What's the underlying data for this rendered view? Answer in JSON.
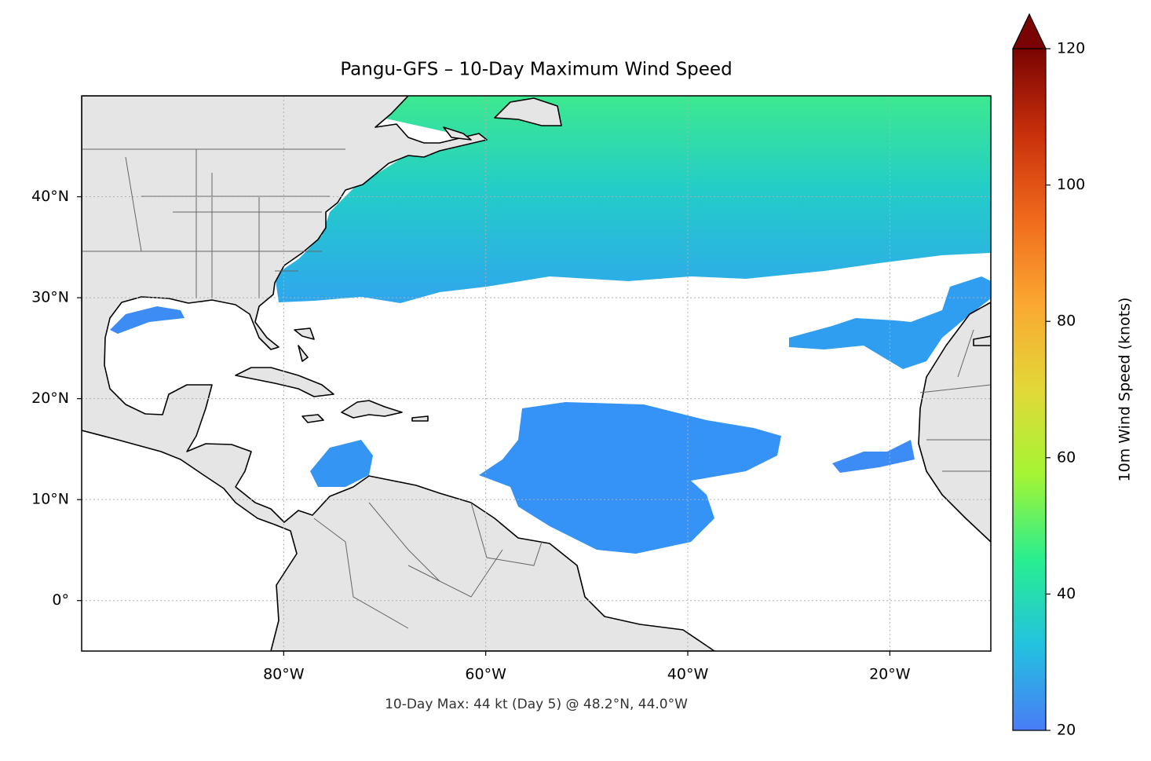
{
  "chart_data": {
    "type": "map",
    "title": "Pangu-GFS – 10-Day Maximum Wind Speed",
    "annotation": "10-Day Max: 44 kt (Day 5) @ 48.2°N, 44.0°W",
    "xlim": [
      -100,
      -10
    ],
    "ylim": [
      -5,
      50
    ],
    "xticks": [
      {
        "value": -80,
        "label": "80°W"
      },
      {
        "value": -60,
        "label": "60°W"
      },
      {
        "value": -40,
        "label": "40°W"
      },
      {
        "value": -20,
        "label": "20°W"
      }
    ],
    "yticks": [
      {
        "value": 0,
        "label": "0°"
      },
      {
        "value": 10,
        "label": "10°N"
      },
      {
        "value": 20,
        "label": "20°N"
      },
      {
        "value": 30,
        "label": "30°N"
      },
      {
        "value": 40,
        "label": "40°N"
      }
    ],
    "grid": true,
    "colorbar": {
      "label": "10m Wind Speed (knots)",
      "lim": [
        20,
        120
      ],
      "ticks": [
        20,
        40,
        60,
        80,
        100,
        120
      ],
      "colors": [
        "#4a7cf6",
        "#23c2e0",
        "#28ee90",
        "#a4f534",
        "#e2d838",
        "#fba832",
        "#f06a1c",
        "#c9300b",
        "#7a0403"
      ],
      "extend": "max"
    }
  }
}
